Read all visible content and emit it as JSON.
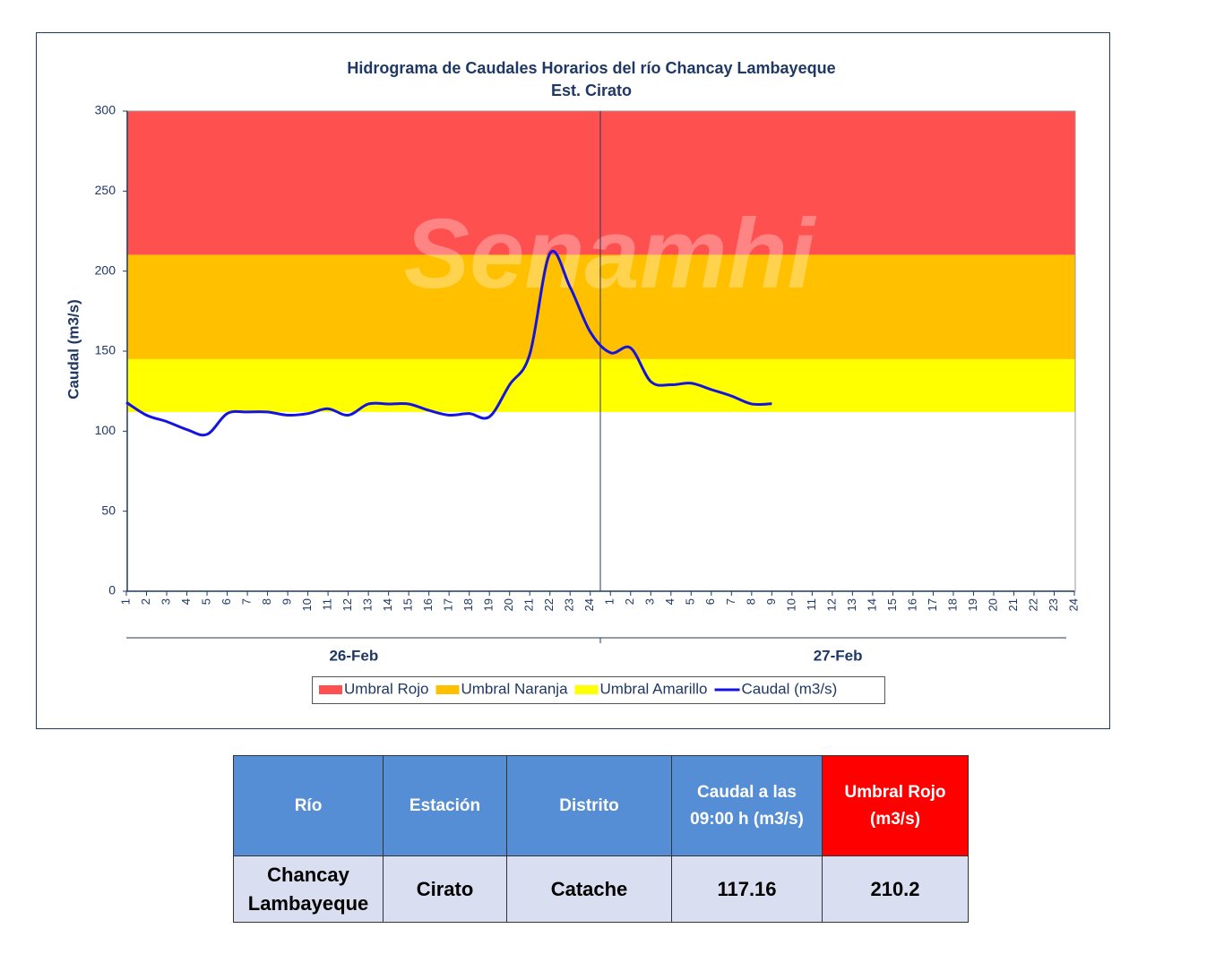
{
  "chart_data": {
    "type": "line",
    "title": "Hidrograma  de Caudales Horarios  del río Chancay Lambayeque",
    "subtitle": "Est. Cirato",
    "y_label": "Caudal (m3/s)",
    "watermark": "Senamhi",
    "categories": [
      "1",
      "2",
      "3",
      "4",
      "5",
      "6",
      "7",
      "8",
      "9",
      "10",
      "11",
      "12",
      "13",
      "14",
      "15",
      "16",
      "17",
      "18",
      "19",
      "20",
      "21",
      "22",
      "23",
      "24",
      "1",
      "2",
      "3",
      "4",
      "5",
      "6",
      "7",
      "8",
      "9",
      "10",
      "11",
      "12",
      "13",
      "14",
      "15",
      "16",
      "17",
      "18",
      "19",
      "20",
      "21",
      "22",
      "23",
      "24"
    ],
    "groups": [
      {
        "label": "26-Feb",
        "size": 24
      },
      {
        "label": "27-Feb",
        "size": 24
      }
    ],
    "bands": [
      {
        "name": "Umbral Rojo",
        "color": "#FF5050",
        "from": 210.2
      },
      {
        "name": "Umbral Naranja",
        "color": "#FFC000",
        "from": 145
      },
      {
        "name": "Umbral Amarillo",
        "color": "#FFFF00",
        "from": 112
      }
    ],
    "series": [
      {
        "name": "Caudal (m3/s)",
        "color": "#1414E0",
        "values": [
          118,
          110,
          106,
          101,
          98,
          111,
          112,
          112,
          110,
          111,
          114,
          110,
          117,
          117,
          117,
          113,
          110,
          111,
          109,
          129,
          148,
          211,
          190,
          162,
          149,
          152,
          131,
          129,
          130,
          126,
          122,
          117,
          117.16,
          null,
          null,
          null,
          null,
          null,
          null,
          null,
          null,
          null,
          null,
          null,
          null,
          null,
          null,
          null
        ]
      }
    ],
    "ylim": [
      0,
      300
    ],
    "yticks": [
      0,
      50,
      100,
      150,
      200,
      250,
      300
    ]
  },
  "table": {
    "headers": [
      "Río",
      "Estación",
      "Distrito",
      "Caudal a las 09:00 h (m3/s)",
      "Umbral Rojo (m3/s)"
    ],
    "rows": [
      [
        "Chancay Lambayeque",
        "Cirato",
        "Catache",
        117.16,
        210.2
      ]
    ]
  }
}
